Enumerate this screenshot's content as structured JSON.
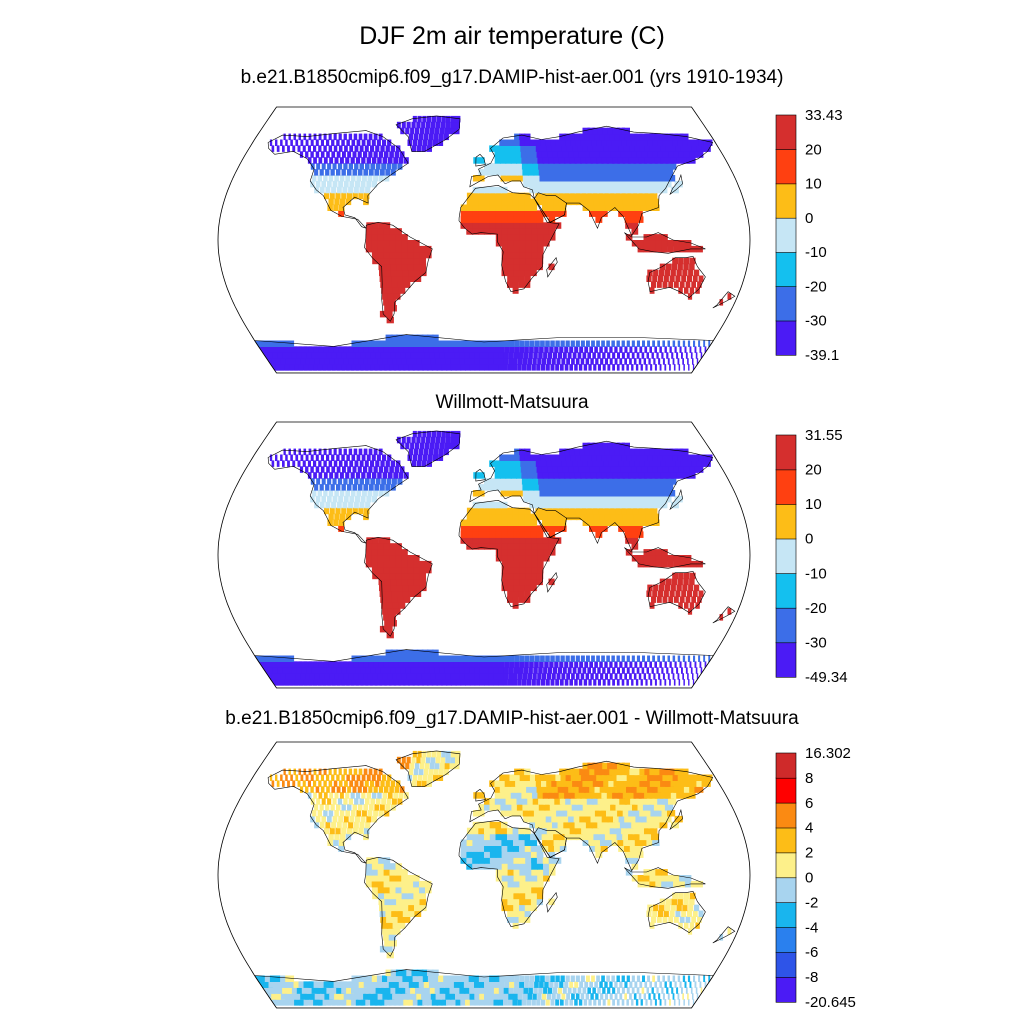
{
  "main_title": "DJF 2m air temperature (C)",
  "panels": [
    {
      "subtitle": "b.e21.B1850cmip6.f09_g17.DAMIP-hist-aer.001 (yrs 1910-1934)",
      "colors": [
        "#4b1bf5",
        "#3c6ee8",
        "#14c0ef",
        "#c6e6f5",
        "#fdbd17",
        "#ff4011",
        "#d52f2e"
      ],
      "labels": [
        "-39.1",
        "-30",
        "-20",
        "-10",
        "0",
        "10",
        "20",
        "33.43"
      ],
      "scheme": "abs"
    },
    {
      "subtitle": "Willmott-Matsuura",
      "colors": [
        "#4b1bf5",
        "#3c6ee8",
        "#14c0ef",
        "#c6e6f5",
        "#fdbd17",
        "#ff4011",
        "#d52f2e"
      ],
      "labels": [
        "-49.34",
        "-30",
        "-20",
        "-10",
        "0",
        "10",
        "20",
        "31.55"
      ],
      "scheme": "abs"
    },
    {
      "subtitle": "b.e21.B1850cmip6.f09_g17.DAMIP-hist-aer.001 - Willmott-Matsuura",
      "colors": [
        "#4b1bf5",
        "#2e54e8",
        "#2a80ee",
        "#19b5ee",
        "#a8d4ef",
        "#fdf08a",
        "#fdbd17",
        "#fb8a12",
        "#ff0000",
        "#cf2a2a"
      ],
      "labels": [
        "-20.645",
        "-8",
        "-6",
        "-4",
        "-2",
        "0",
        "2",
        "4",
        "6",
        "8",
        "16.302"
      ],
      "scheme": "diff"
    }
  ]
}
